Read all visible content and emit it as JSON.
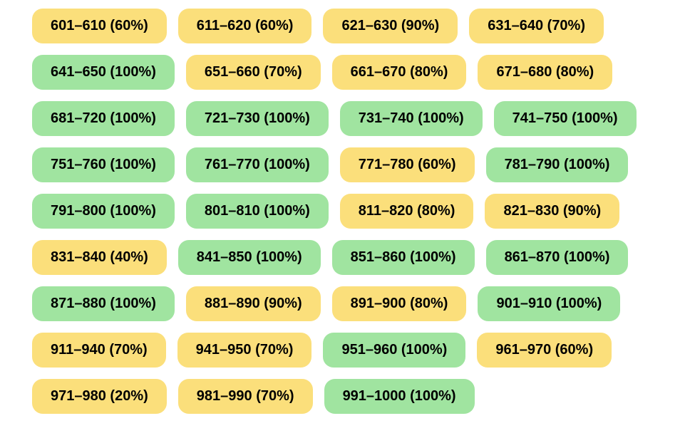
{
  "colors": {
    "yellow": "#fbdf7b",
    "green": "#a0e4a0",
    "text": "#000000",
    "background": "#ffffff"
  },
  "board": {
    "rows": [
      [
        {
          "label": "601–610 (60%)",
          "range": "601–610",
          "percent": 60,
          "status": "yellow"
        },
        {
          "label": "611–620 (60%)",
          "range": "611–620",
          "percent": 60,
          "status": "yellow"
        },
        {
          "label": "621–630 (90%)",
          "range": "621–630",
          "percent": 90,
          "status": "yellow"
        },
        {
          "label": "631–640 (70%)",
          "range": "631–640",
          "percent": 70,
          "status": "yellow"
        }
      ],
      [
        {
          "label": "641–650 (100%)",
          "range": "641–650",
          "percent": 100,
          "status": "green"
        },
        {
          "label": "651–660 (70%)",
          "range": "651–660",
          "percent": 70,
          "status": "yellow"
        },
        {
          "label": "661–670 (80%)",
          "range": "661–670",
          "percent": 80,
          "status": "yellow"
        },
        {
          "label": "671–680 (80%)",
          "range": "671–680",
          "percent": 80,
          "status": "yellow"
        }
      ],
      [
        {
          "label": "681–720 (100%)",
          "range": "681–720",
          "percent": 100,
          "status": "green"
        },
        {
          "label": "721–730 (100%)",
          "range": "721–730",
          "percent": 100,
          "status": "green"
        },
        {
          "label": "731–740 (100%)",
          "range": "731–740",
          "percent": 100,
          "status": "green"
        },
        {
          "label": "741–750 (100%)",
          "range": "741–750",
          "percent": 100,
          "status": "green"
        }
      ],
      [
        {
          "label": "751–760 (100%)",
          "range": "751–760",
          "percent": 100,
          "status": "green"
        },
        {
          "label": "761–770 (100%)",
          "range": "761–770",
          "percent": 100,
          "status": "green"
        },
        {
          "label": "771–780 (60%)",
          "range": "771–780",
          "percent": 60,
          "status": "yellow"
        },
        {
          "label": "781–790 (100%)",
          "range": "781–790",
          "percent": 100,
          "status": "green"
        }
      ],
      [
        {
          "label": "791–800 (100%)",
          "range": "791–800",
          "percent": 100,
          "status": "green"
        },
        {
          "label": "801–810 (100%)",
          "range": "801–810",
          "percent": 100,
          "status": "green"
        },
        {
          "label": "811–820 (80%)",
          "range": "811–820",
          "percent": 80,
          "status": "yellow"
        },
        {
          "label": "821–830 (90%)",
          "range": "821–830",
          "percent": 90,
          "status": "yellow"
        }
      ],
      [
        {
          "label": "831–840 (40%)",
          "range": "831–840",
          "percent": 40,
          "status": "yellow"
        },
        {
          "label": "841–850 (100%)",
          "range": "841–850",
          "percent": 100,
          "status": "green"
        },
        {
          "label": "851–860 (100%)",
          "range": "851–860",
          "percent": 100,
          "status": "green"
        },
        {
          "label": "861–870 (100%)",
          "range": "861–870",
          "percent": 100,
          "status": "green"
        }
      ],
      [
        {
          "label": "871–880 (100%)",
          "range": "871–880",
          "percent": 100,
          "status": "green"
        },
        {
          "label": "881–890 (90%)",
          "range": "881–890",
          "percent": 90,
          "status": "yellow"
        },
        {
          "label": "891–900 (80%)",
          "range": "891–900",
          "percent": 80,
          "status": "yellow"
        },
        {
          "label": "901–910 (100%)",
          "range": "901–910",
          "percent": 100,
          "status": "green"
        }
      ],
      [
        {
          "label": "911–940 (70%)",
          "range": "911–940",
          "percent": 70,
          "status": "yellow"
        },
        {
          "label": "941–950 (70%)",
          "range": "941–950",
          "percent": 70,
          "status": "yellow"
        },
        {
          "label": "951–960 (100%)",
          "range": "951–960",
          "percent": 100,
          "status": "green"
        },
        {
          "label": "961–970 (60%)",
          "range": "961–970",
          "percent": 60,
          "status": "yellow"
        }
      ],
      [
        {
          "label": "971–980 (20%)",
          "range": "971–980",
          "percent": 20,
          "status": "yellow"
        },
        {
          "label": "981–990 (70%)",
          "range": "981–990",
          "percent": 70,
          "status": "yellow"
        },
        {
          "label": "991–1000 (100%)",
          "range": "991–1000",
          "percent": 100,
          "status": "green"
        }
      ]
    ]
  }
}
